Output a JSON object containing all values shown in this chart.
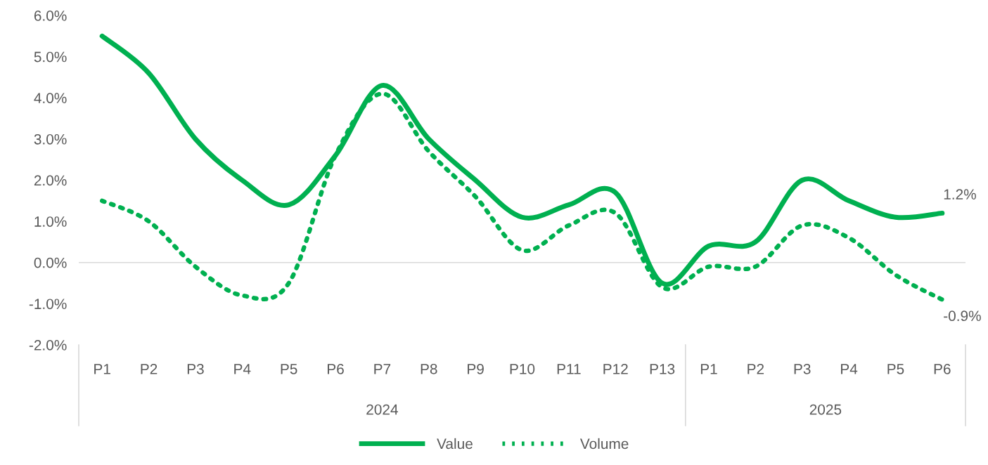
{
  "chart_data": {
    "type": "line",
    "categories": [
      "P1",
      "P2",
      "P3",
      "P4",
      "P5",
      "P6",
      "P7",
      "P8",
      "P9",
      "P10",
      "P11",
      "P12",
      "P13",
      "P1",
      "P2",
      "P3",
      "P4",
      "P5",
      "P6"
    ],
    "annotations": [
      "2024",
      "2025"
    ],
    "series": [
      {
        "name": "Value",
        "color": "#00b050",
        "line_style": "solid",
        "values": [
          5.5,
          4.6,
          3.0,
          2.0,
          1.4,
          2.6,
          4.3,
          3.0,
          2.0,
          1.1,
          1.4,
          1.7,
          -0.5,
          0.4,
          0.5,
          2.0,
          1.5,
          1.1,
          1.2
        ],
        "value_labels": [
          null,
          null,
          null,
          null,
          null,
          null,
          null,
          null,
          null,
          null,
          null,
          null,
          null,
          null,
          null,
          null,
          null,
          null,
          "1.2%"
        ]
      },
      {
        "name": "Volume",
        "color": "#00b050",
        "line_style": "dotted",
        "values": [
          1.5,
          1.0,
          -0.1,
          -0.8,
          -0.5,
          2.6,
          4.1,
          2.7,
          1.6,
          0.3,
          0.9,
          1.2,
          -0.6,
          -0.1,
          -0.1,
          0.9,
          0.6,
          -0.3,
          -0.9
        ],
        "value_labels": [
          null,
          null,
          null,
          null,
          null,
          null,
          null,
          null,
          null,
          null,
          null,
          null,
          null,
          null,
          null,
          null,
          null,
          null,
          "-0.9%"
        ]
      }
    ],
    "ylim": [
      -2,
      6
    ],
    "yticks": [
      {
        "value": -2,
        "label": "-2.0%"
      },
      {
        "value": -1,
        "label": "-1.0%"
      },
      {
        "value": 0,
        "label": "0.0%"
      },
      {
        "value": 1,
        "label": "1.0%"
      },
      {
        "value": 2,
        "label": "2.0%"
      },
      {
        "value": 3,
        "label": "3.0%"
      },
      {
        "value": 4,
        "label": "4.0%"
      },
      {
        "value": 5,
        "label": "5.0%"
      },
      {
        "value": 6,
        "label": "6.0%"
      }
    ],
    "grid": false,
    "ref_lines": [
      {
        "axis": "y",
        "value": 0,
        "color": "#d9d9d9"
      }
    ],
    "legend": "bottom",
    "marker": "none"
  }
}
